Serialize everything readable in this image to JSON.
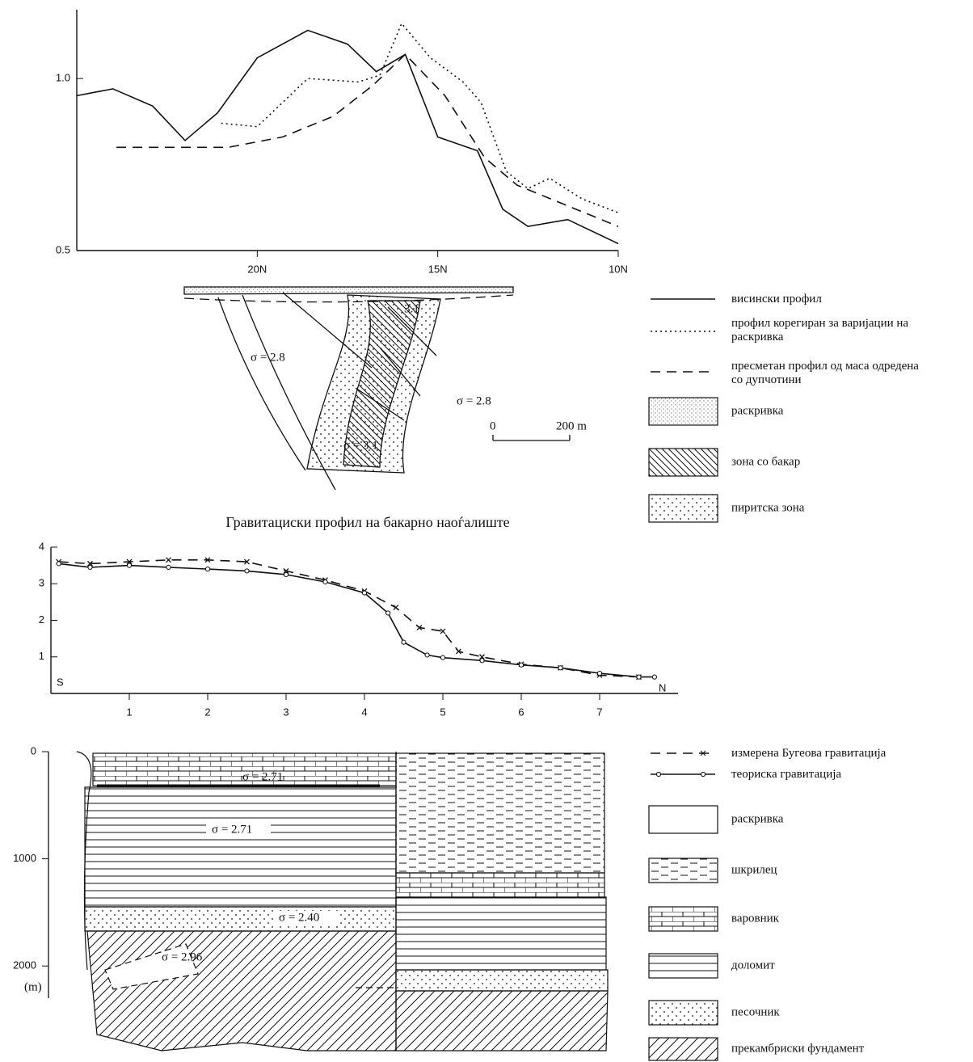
{
  "chart_data": [
    {
      "type": "line",
      "xlim": [
        25,
        10
      ],
      "ylim": [
        0.5,
        1.2
      ],
      "xticks": [
        {
          "value": 20,
          "label": "20N"
        },
        {
          "value": 15,
          "label": "15N"
        },
        {
          "value": 10,
          "label": "10N"
        }
      ],
      "yticks": [
        0.5,
        {
          "value": 1,
          "label": "1.0"
        }
      ],
      "series": [
        {
          "name": "висински профил",
          "color": "#111111",
          "style": "solid",
          "x": [
            25,
            24,
            22.9,
            22,
            21.1,
            20,
            18.6,
            17.5,
            16.7,
            15.9,
            15,
            13.9,
            13.2,
            12.5,
            11.4,
            10
          ],
          "values": [
            0.95,
            0.97,
            0.92,
            0.82,
            0.9,
            1.06,
            1.14,
            1.1,
            1.02,
            1.07,
            0.83,
            0.79,
            0.62,
            0.57,
            0.59,
            0.52
          ]
        },
        {
          "name": "профил корегиран за варијации на раскривка",
          "color": "#111111",
          "style": "dotted",
          "x": [
            21,
            20,
            18.6,
            17.2,
            16.6,
            16,
            15.2,
            14.3,
            13.8,
            13.1,
            12.5,
            11.9,
            11,
            10
          ],
          "values": [
            0.87,
            0.86,
            1.0,
            0.99,
            1.01,
            1.16,
            1.06,
            0.99,
            0.93,
            0.73,
            0.68,
            0.71,
            0.65,
            0.61
          ]
        },
        {
          "name": "пресметан профил од маса одредена со дупчотини",
          "color": "#111111",
          "style": "dashed",
          "x": [
            23.9,
            22,
            20.8,
            19.3,
            17.9,
            16.8,
            15.9,
            14.8,
            13.7,
            12.8,
            11.4,
            10
          ],
          "values": [
            0.8,
            0.8,
            0.8,
            0.83,
            0.89,
            0.98,
            1.07,
            0.95,
            0.77,
            0.69,
            0.63,
            0.57
          ]
        }
      ]
    },
    {
      "type": "line",
      "xlim": [
        0,
        8
      ],
      "ylim": [
        0,
        4
      ],
      "xticks": [
        1,
        2,
        3,
        4,
        5,
        6,
        7
      ],
      "yticks": [
        1,
        2,
        3,
        4
      ],
      "annotations": [
        "S",
        "N"
      ],
      "series": [
        {
          "name": "измерена Бугеова гравитација",
          "color": "#111111",
          "style": "dashed",
          "marker": "x",
          "x": [
            0.1,
            0.5,
            1,
            1.5,
            2,
            2.5,
            3,
            3.5,
            4,
            4.4,
            4.7,
            5,
            5.2,
            5.5,
            6,
            6.5,
            7,
            7.5
          ],
          "values": [
            3.6,
            3.55,
            3.6,
            3.65,
            3.65,
            3.6,
            3.35,
            3.1,
            2.8,
            2.35,
            1.8,
            1.7,
            1.15,
            1.0,
            0.8,
            0.7,
            0.5,
            0.45
          ]
        },
        {
          "name": "теориска гравитација",
          "color": "#111111",
          "style": "solid",
          "marker": "circle",
          "x": [
            0.1,
            0.5,
            1,
            1.5,
            2,
            2.5,
            3,
            3.5,
            4,
            4.3,
            4.5,
            4.8,
            5,
            5.5,
            6,
            6.5,
            7,
            7.5,
            7.7
          ],
          "values": [
            3.55,
            3.45,
            3.5,
            3.45,
            3.4,
            3.35,
            3.25,
            3.05,
            2.75,
            2.2,
            1.4,
            1.05,
            0.98,
            0.9,
            0.78,
            0.7,
            0.55,
            0.45,
            0.45
          ]
        }
      ]
    }
  ],
  "cross_section": {
    "caption": "Гравитациски профил на бакарно наоѓалиште",
    "labels": [
      "σ = 2.8",
      "σ = 2.8",
      "σ = 3.1",
      "3.1"
    ],
    "scale": [
      "0",
      "200 m"
    ],
    "legend": [
      "раскривка",
      "зона со бакар",
      "пиритска зона"
    ]
  },
  "column": {
    "depth_lim": [
      0,
      2300
    ],
    "depth_ticks": [
      0,
      {
        "value": 1000,
        "label": "1000"
      },
      2000
    ],
    "unit": "(m)",
    "labels": [
      "σ = 2.71",
      "σ = 2.71",
      "σ = 2.40",
      "σ = 2.96"
    ],
    "legend": [
      "раскривка",
      "шкрилец",
      "варовник",
      "доломит",
      "песочник",
      "прекамбриски фундамент"
    ]
  }
}
